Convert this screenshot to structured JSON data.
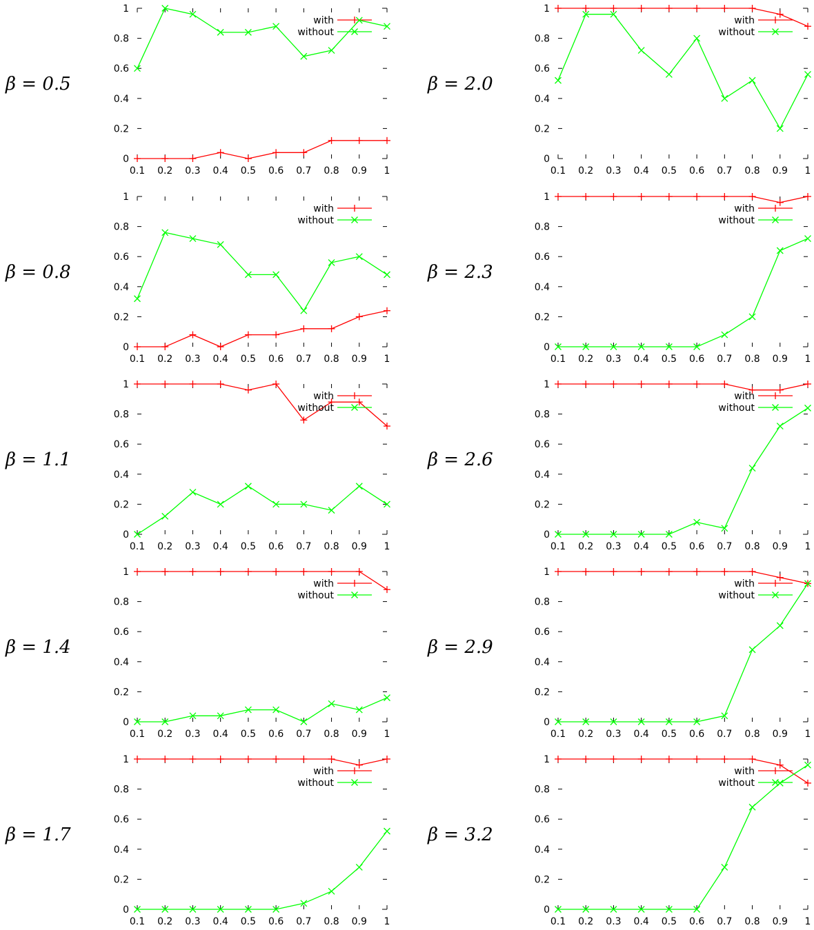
{
  "chart_data": [
    {
      "type": "line",
      "label": "β = 0.5",
      "column": 0,
      "row": 0,
      "x": [
        0.1,
        0.2,
        0.3,
        0.4,
        0.5,
        0.6,
        0.7,
        0.8,
        0.9,
        1
      ],
      "ylim": [
        0,
        1
      ],
      "legend_position": "top-right",
      "series": [
        {
          "name": "with",
          "color": "#ff0000",
          "marker": "plus",
          "values": [
            0,
            0,
            0,
            0.04,
            0,
            0.04,
            0.04,
            0.12,
            0.12,
            0.12
          ]
        },
        {
          "name": "without",
          "color": "#00ff00",
          "marker": "cross",
          "values": [
            0.6,
            1,
            0.96,
            0.84,
            0.84,
            0.88,
            0.68,
            0.72,
            0.92,
            0.88
          ]
        }
      ]
    },
    {
      "type": "line",
      "label": "β = 0.8",
      "column": 0,
      "row": 1,
      "x": [
        0.1,
        0.2,
        0.3,
        0.4,
        0.5,
        0.6,
        0.7,
        0.8,
        0.9,
        1
      ],
      "ylim": [
        0,
        1
      ],
      "legend_position": "top-right",
      "series": [
        {
          "name": "with",
          "color": "#ff0000",
          "marker": "plus",
          "values": [
            0,
            0,
            0.08,
            0,
            0.08,
            0.08,
            0.12,
            0.12,
            0.2,
            0.24
          ]
        },
        {
          "name": "without",
          "color": "#00ff00",
          "marker": "cross",
          "values": [
            0.32,
            0.76,
            0.72,
            0.68,
            0.48,
            0.48,
            0.24,
            0.56,
            0.6,
            0.48
          ]
        }
      ]
    },
    {
      "type": "line",
      "label": "β = 1.1",
      "column": 0,
      "row": 2,
      "x": [
        0.1,
        0.2,
        0.3,
        0.4,
        0.5,
        0.6,
        0.7,
        0.8,
        0.9,
        1
      ],
      "ylim": [
        0,
        1
      ],
      "legend_position": "top-right",
      "series": [
        {
          "name": "with",
          "color": "#ff0000",
          "marker": "plus",
          "values": [
            1,
            1,
            1,
            1,
            0.96,
            1,
            0.76,
            0.88,
            0.88,
            0.72
          ]
        },
        {
          "name": "without",
          "color": "#00ff00",
          "marker": "cross",
          "values": [
            0,
            0.12,
            0.28,
            0.2,
            0.32,
            0.2,
            0.2,
            0.16,
            0.32,
            0.2
          ]
        }
      ]
    },
    {
      "type": "line",
      "label": "β = 1.4",
      "column": 0,
      "row": 3,
      "x": [
        0.1,
        0.2,
        0.3,
        0.4,
        0.5,
        0.6,
        0.7,
        0.8,
        0.9,
        1
      ],
      "ylim": [
        0,
        1
      ],
      "legend_position": "top-right",
      "series": [
        {
          "name": "with",
          "color": "#ff0000",
          "marker": "plus",
          "values": [
            1,
            1,
            1,
            1,
            1,
            1,
            1,
            1,
            1,
            0.88
          ]
        },
        {
          "name": "without",
          "color": "#00ff00",
          "marker": "cross",
          "values": [
            0,
            0,
            0.04,
            0.04,
            0.08,
            0.08,
            0,
            0.12,
            0.08,
            0.16
          ]
        }
      ]
    },
    {
      "type": "line",
      "label": "β = 1.7",
      "column": 0,
      "row": 4,
      "x": [
        0.1,
        0.2,
        0.3,
        0.4,
        0.5,
        0.6,
        0.7,
        0.8,
        0.9,
        1
      ],
      "ylim": [
        0,
        1
      ],
      "legend_position": "top-right",
      "series": [
        {
          "name": "with",
          "color": "#ff0000",
          "marker": "plus",
          "values": [
            1,
            1,
            1,
            1,
            1,
            1,
            1,
            1,
            0.96,
            1
          ]
        },
        {
          "name": "without",
          "color": "#00ff00",
          "marker": "cross",
          "values": [
            0,
            0,
            0,
            0,
            0,
            0,
            0.04,
            0.12,
            0.28,
            0.52
          ]
        }
      ]
    },
    {
      "type": "line",
      "label": "β = 2.0",
      "column": 1,
      "row": 0,
      "x": [
        0.1,
        0.2,
        0.3,
        0.4,
        0.5,
        0.6,
        0.7,
        0.8,
        0.9,
        1
      ],
      "ylim": [
        0,
        1
      ],
      "legend_position": "top-right",
      "series": [
        {
          "name": "with",
          "color": "#ff0000",
          "marker": "plus",
          "values": [
            1,
            1,
            1,
            1,
            1,
            1,
            1,
            1,
            0.96,
            0.88
          ]
        },
        {
          "name": "without",
          "color": "#00ff00",
          "marker": "cross",
          "values": [
            0.52,
            0.96,
            0.96,
            0.72,
            0.56,
            0.8,
            0.4,
            0.52,
            0.2,
            0.56
          ]
        }
      ]
    },
    {
      "type": "line",
      "label": "β = 2.3",
      "column": 1,
      "row": 1,
      "x": [
        0.1,
        0.2,
        0.3,
        0.4,
        0.5,
        0.6,
        0.7,
        0.8,
        0.9,
        1
      ],
      "ylim": [
        0,
        1
      ],
      "legend_position": "top-right",
      "series": [
        {
          "name": "with",
          "color": "#ff0000",
          "marker": "plus",
          "values": [
            1,
            1,
            1,
            1,
            1,
            1,
            1,
            1,
            0.96,
            1
          ]
        },
        {
          "name": "without",
          "color": "#00ff00",
          "marker": "cross",
          "values": [
            0,
            0,
            0,
            0,
            0,
            0,
            0.08,
            0.2,
            0.64,
            0.72
          ]
        }
      ]
    },
    {
      "type": "line",
      "label": "β = 2.6",
      "column": 1,
      "row": 2,
      "x": [
        0.1,
        0.2,
        0.3,
        0.4,
        0.5,
        0.6,
        0.7,
        0.8,
        0.9,
        1
      ],
      "ylim": [
        0,
        1
      ],
      "legend_position": "top-right",
      "series": [
        {
          "name": "with",
          "color": "#ff0000",
          "marker": "plus",
          "values": [
            1,
            1,
            1,
            1,
            1,
            1,
            1,
            0.96,
            0.96,
            1
          ]
        },
        {
          "name": "without",
          "color": "#00ff00",
          "marker": "cross",
          "values": [
            0,
            0,
            0,
            0,
            0,
            0.08,
            0.04,
            0.44,
            0.72,
            0.84
          ]
        }
      ]
    },
    {
      "type": "line",
      "label": "β = 2.9",
      "column": 1,
      "row": 3,
      "x": [
        0.1,
        0.2,
        0.3,
        0.4,
        0.5,
        0.6,
        0.7,
        0.8,
        0.9,
        1
      ],
      "ylim": [
        0,
        1
      ],
      "legend_position": "top-right",
      "series": [
        {
          "name": "with",
          "color": "#ff0000",
          "marker": "plus",
          "values": [
            1,
            1,
            1,
            1,
            1,
            1,
            1,
            1,
            0.96,
            0.92
          ]
        },
        {
          "name": "without",
          "color": "#00ff00",
          "marker": "cross",
          "values": [
            0,
            0,
            0,
            0,
            0,
            0,
            0.04,
            0.48,
            0.64,
            0.92
          ]
        }
      ]
    },
    {
      "type": "line",
      "label": "β = 3.2",
      "column": 1,
      "row": 4,
      "x": [
        0.1,
        0.2,
        0.3,
        0.4,
        0.5,
        0.6,
        0.7,
        0.8,
        0.9,
        1
      ],
      "ylim": [
        0,
        1
      ],
      "legend_position": "top-right",
      "series": [
        {
          "name": "with",
          "color": "#ff0000",
          "marker": "plus",
          "values": [
            1,
            1,
            1,
            1,
            1,
            1,
            1,
            1,
            0.96,
            0.84
          ]
        },
        {
          "name": "without",
          "color": "#00ff00",
          "marker": "cross",
          "values": [
            0,
            0,
            0,
            0,
            0,
            0,
            0.28,
            0.68,
            0.84,
            0.96
          ]
        }
      ]
    }
  ]
}
